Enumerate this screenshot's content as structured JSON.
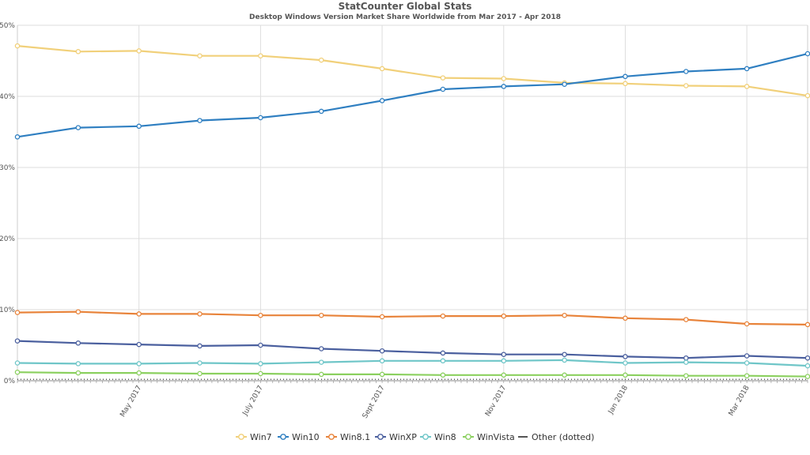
{
  "chart_data": {
    "type": "line",
    "title": "StatCounter Global Stats",
    "subtitle": "Desktop Windows Version Market Share Worldwide from Mar 2017 - Apr 2018",
    "x": [
      "Mar 2017",
      "Apr 2017",
      "May 2017",
      "June 2017",
      "July 2017",
      "Aug 2017",
      "Sept 2017",
      "Oct 2017",
      "Nov 2017",
      "Dec 2017",
      "Jan 2018",
      "Feb 2018",
      "Mar 2018",
      "Apr 2018"
    ],
    "x_tick_labels": [
      {
        "index": 2,
        "label": "May 2017"
      },
      {
        "index": 4,
        "label": "July 2017"
      },
      {
        "index": 6,
        "label": "Sept 2017"
      },
      {
        "index": 8,
        "label": "Nov 2017"
      },
      {
        "index": 10,
        "label": "Jan 2018"
      },
      {
        "index": 12,
        "label": "Mar 2018"
      }
    ],
    "y_tick_labels": [
      "0%",
      "10%",
      "20%",
      "30%",
      "40%",
      "50%"
    ],
    "ylim": [
      0,
      50
    ],
    "grid": true,
    "legend_position": "bottom",
    "series": [
      {
        "name": "Win7",
        "color": "#f1d07a",
        "values": [
          47.1,
          46.3,
          46.4,
          45.7,
          45.7,
          45.1,
          43.9,
          42.6,
          42.5,
          41.9,
          41.8,
          41.5,
          41.4,
          40.1
        ]
      },
      {
        "name": "Win10",
        "color": "#2f7fc1",
        "values": [
          34.3,
          35.6,
          35.8,
          36.6,
          37.0,
          37.9,
          39.4,
          41.0,
          41.4,
          41.7,
          42.8,
          43.5,
          43.9,
          46.0
        ]
      },
      {
        "name": "Win8.1",
        "color": "#e8833a",
        "values": [
          9.6,
          9.7,
          9.4,
          9.4,
          9.2,
          9.2,
          9.0,
          9.1,
          9.1,
          9.2,
          8.8,
          8.6,
          8.0,
          7.9
        ]
      },
      {
        "name": "WinXP",
        "color": "#4a5f9e",
        "values": [
          5.6,
          5.3,
          5.1,
          4.9,
          5.0,
          4.5,
          4.2,
          3.9,
          3.7,
          3.7,
          3.4,
          3.2,
          3.5,
          3.2
        ]
      },
      {
        "name": "Win8",
        "color": "#6fc6c8",
        "values": [
          2.5,
          2.4,
          2.4,
          2.5,
          2.4,
          2.6,
          2.8,
          2.8,
          2.8,
          2.9,
          2.5,
          2.6,
          2.5,
          2.1
        ]
      },
      {
        "name": "WinVista",
        "color": "#8bd05f",
        "values": [
          1.2,
          1.1,
          1.1,
          1.0,
          1.0,
          0.9,
          0.9,
          0.8,
          0.8,
          0.8,
          0.8,
          0.7,
          0.7,
          0.6
        ]
      },
      {
        "name": "Other (dotted)",
        "color": "#555555",
        "values": [
          0.2,
          0.2,
          0.2,
          0.2,
          0.2,
          0.2,
          0.2,
          0.2,
          0.2,
          0.2,
          0.2,
          0.2,
          0.2,
          0.2
        ],
        "dotted": true
      }
    ]
  }
}
